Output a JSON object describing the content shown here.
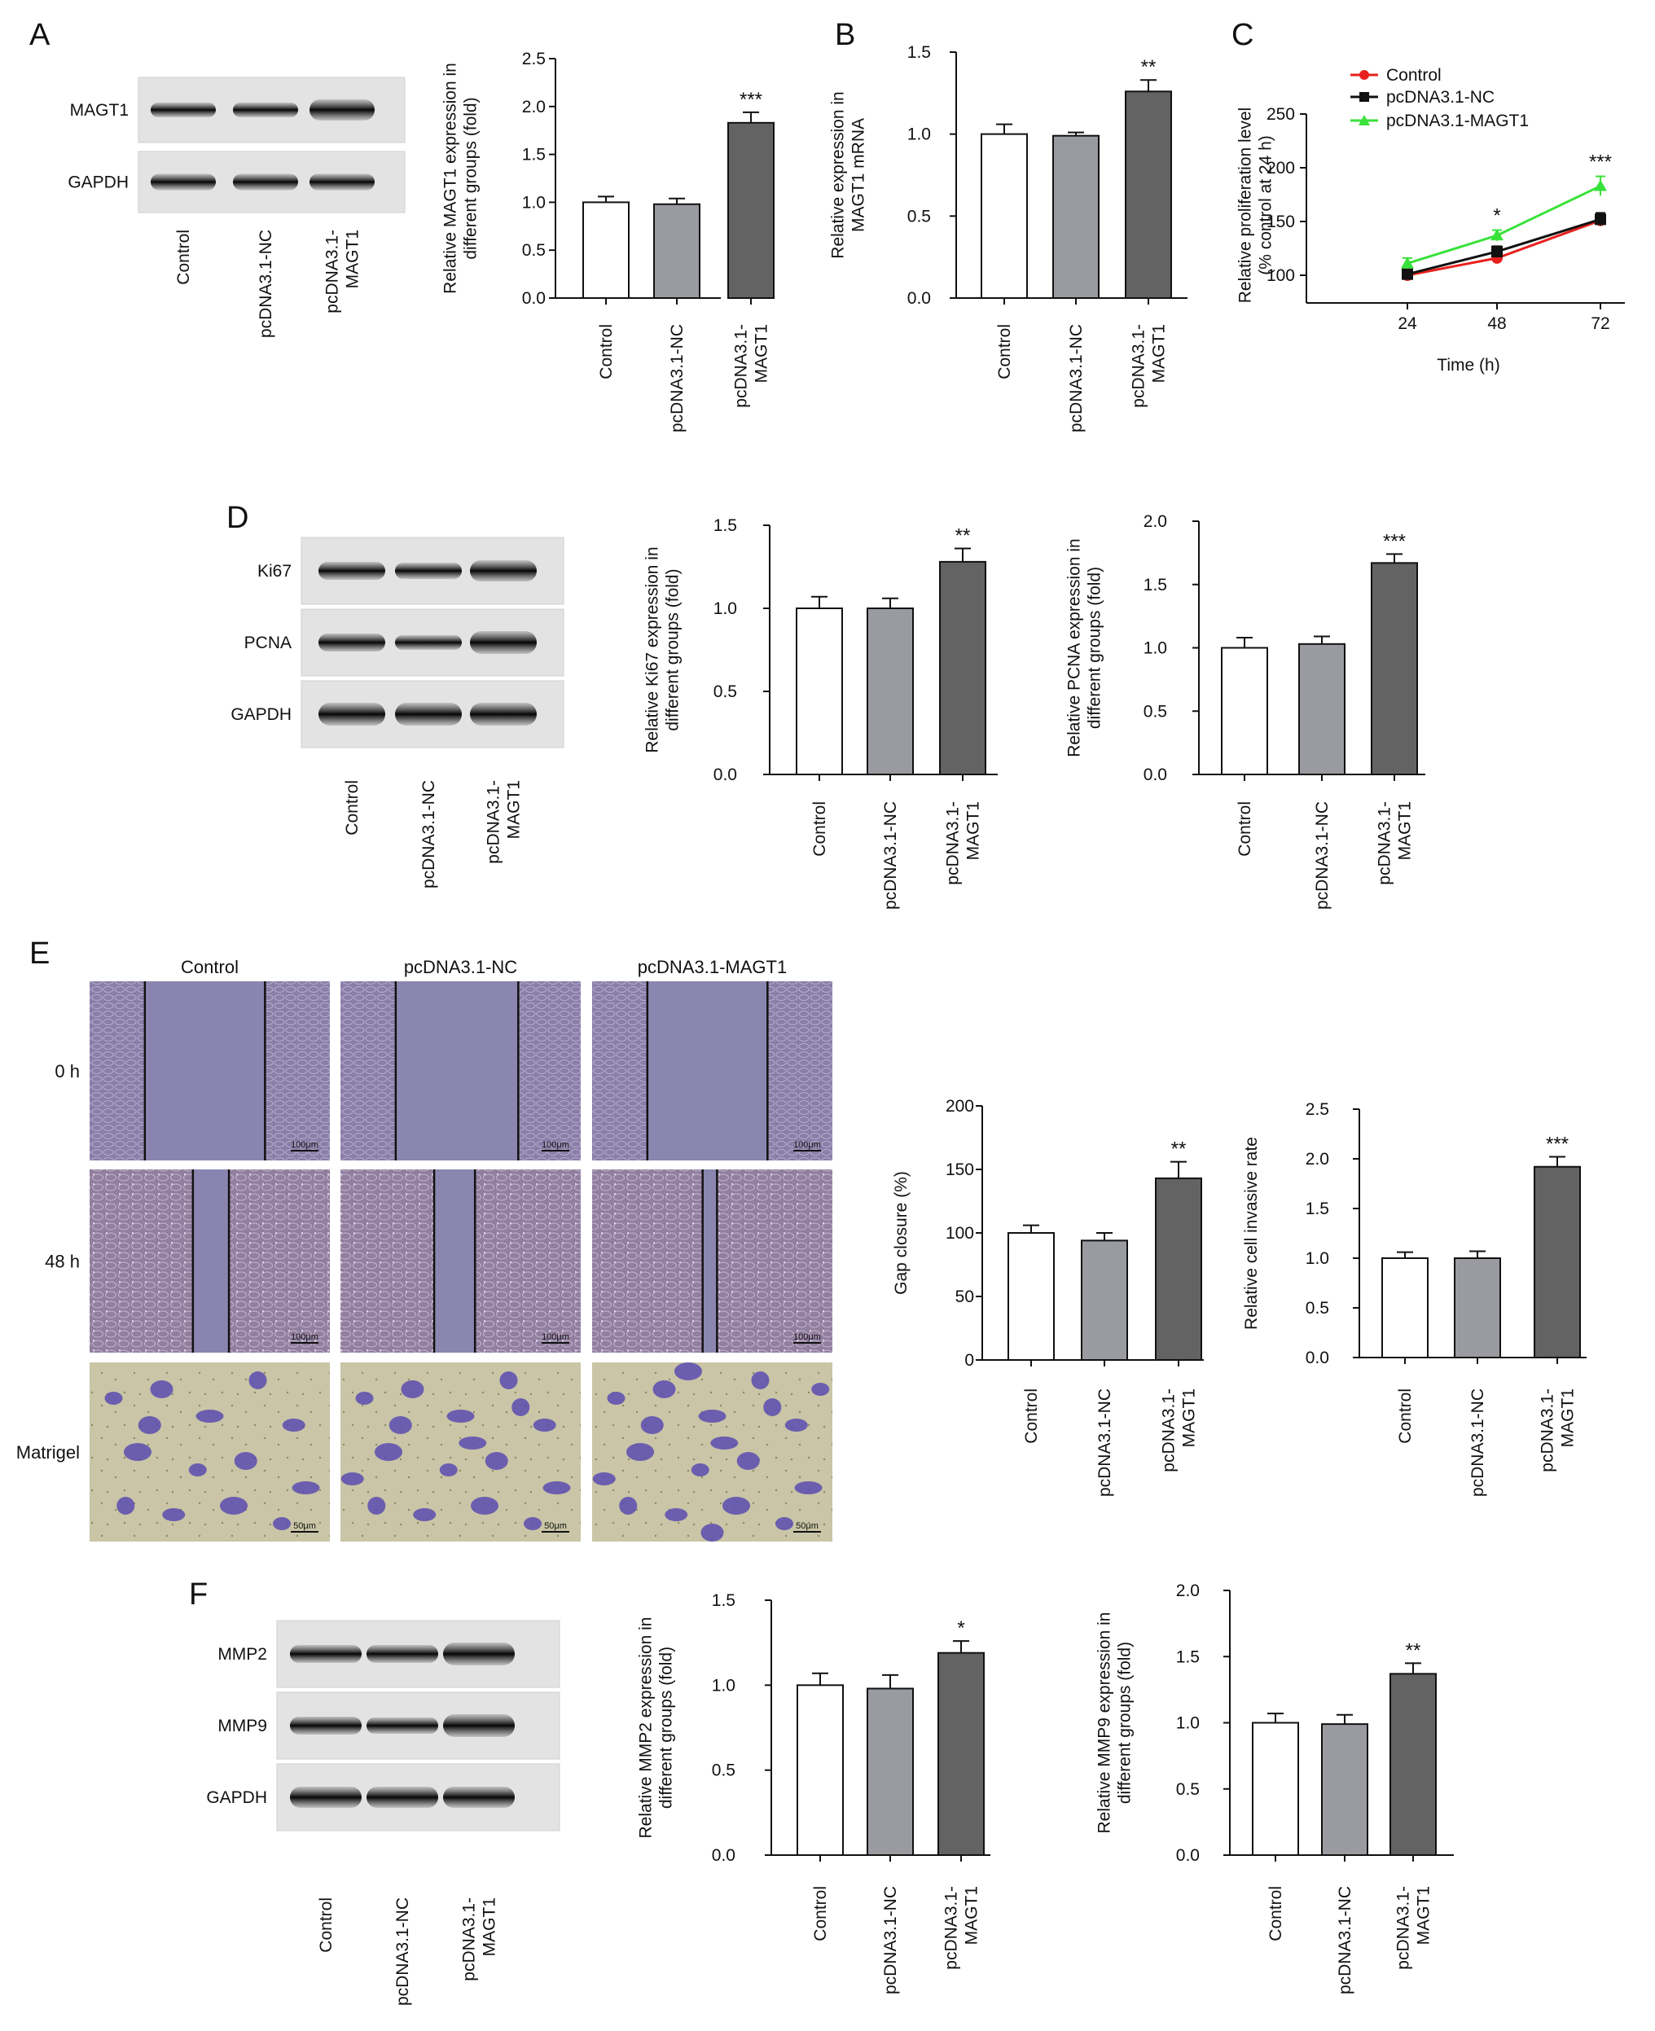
{
  "panels": [
    "A",
    "B",
    "C",
    "D",
    "E",
    "F"
  ],
  "colors": {
    "bar_control": "#ffffff",
    "bar_nc": "#9a9ba1",
    "bar_magt1": "#636363",
    "line_control": "#e8211e",
    "line_nc": "#111111",
    "line_magt1": "#39e23a"
  },
  "blots": {
    "A": {
      "labels": [
        "MAGT1",
        "GAPDH"
      ],
      "lanes": [
        "Control",
        "pcDNA3.1-NC",
        "pcDNA3.1-\nMAGT1"
      ]
    },
    "D": {
      "labels": [
        "Ki67",
        "PCNA",
        "GAPDH"
      ],
      "lanes": [
        "Control",
        "pcDNA3.1-NC",
        "pcDNA3.1-\nMAGT1"
      ]
    },
    "F": {
      "labels": [
        "MMP2",
        "MMP9",
        "GAPDH"
      ],
      "lanes": [
        "Control",
        "pcDNA3.1-NC",
        "pcDNA3.1-\nMAGT1"
      ]
    }
  },
  "micrographs": {
    "columns": [
      "Control",
      "pcDNA3.1-NC",
      "pcDNA3.1-MAGT1"
    ],
    "rows": [
      "0 h",
      "48 h",
      "Matrigel"
    ],
    "scale_bars": [
      "100μm",
      "100μm",
      "50μm"
    ]
  },
  "chart_data": [
    {
      "id": "A",
      "type": "bar",
      "categories": [
        "Control",
        "pcDNA3.1-NC",
        "pcDNA3.1-\nMAGT1"
      ],
      "values": [
        1.0,
        0.98,
        1.83
      ],
      "errors": [
        0.06,
        0.06,
        0.11
      ],
      "sig": [
        "",
        "",
        "***"
      ],
      "ylabel": "Relative MAGT1 expression in\ndifferent groups (fold)",
      "ylim": [
        0,
        2.5
      ],
      "ticks": [
        "0.0",
        "0.5",
        "1.0",
        "1.5",
        "2.0",
        "2.5"
      ]
    },
    {
      "id": "B",
      "type": "bar",
      "categories": [
        "Control",
        "pcDNA3.1-NC",
        "pcDNA3.1-\nMAGT1"
      ],
      "values": [
        1.0,
        0.99,
        1.26
      ],
      "errors": [
        0.06,
        0.02,
        0.07
      ],
      "sig": [
        "",
        "",
        "**"
      ],
      "ylabel": "Relative expression in\nMAGT1 mRNA",
      "ylim": [
        0,
        1.5
      ],
      "ticks": [
        "0.0",
        "0.5",
        "1.0",
        "1.5"
      ]
    },
    {
      "id": "C",
      "type": "line",
      "x": [
        24,
        48,
        72
      ],
      "xticks": [
        "24",
        "48",
        "72"
      ],
      "xlabel": "Time (h)",
      "ylabel": "Relative proliferation level\n(% control at 24 h)",
      "ylim": [
        100,
        250
      ],
      "ticks": [
        "100",
        "150",
        "200",
        "250"
      ],
      "legend": "top-left",
      "series": [
        {
          "name": "Control",
          "values": [
            100,
            116,
            151
          ],
          "errors": [
            4,
            4,
            5
          ]
        },
        {
          "name": "pcDNA3.1-NC",
          "values": [
            101,
            122,
            152
          ],
          "errors": [
            4,
            5,
            6
          ]
        },
        {
          "name": "pcDNA3.1-MAGT1",
          "values": [
            111,
            137,
            183
          ],
          "errors": [
            5,
            5,
            9
          ]
        }
      ],
      "sig": [
        "",
        "*",
        "***"
      ]
    },
    {
      "id": "D1",
      "type": "bar",
      "categories": [
        "Control",
        "pcDNA3.1-NC",
        "pcDNA3.1-\nMAGT1"
      ],
      "values": [
        1.0,
        1.0,
        1.28
      ],
      "errors": [
        0.07,
        0.06,
        0.08
      ],
      "sig": [
        "",
        "",
        "**"
      ],
      "ylabel": "Relative Ki67 expression in\ndifferent groups (fold)",
      "ylim": [
        0,
        1.5
      ],
      "ticks": [
        "0.0",
        "0.5",
        "1.0",
        "1.5"
      ]
    },
    {
      "id": "D2",
      "type": "bar",
      "categories": [
        "Control",
        "pcDNA3.1-NC",
        "pcDNA3.1-\nMAGT1"
      ],
      "values": [
        1.0,
        1.03,
        1.67
      ],
      "errors": [
        0.08,
        0.06,
        0.07
      ],
      "sig": [
        "",
        "",
        "***"
      ],
      "ylabel": "Relative PCNA expression in\ndifferent groups (fold)",
      "ylim": [
        0,
        2.0
      ],
      "ticks": [
        "0.0",
        "0.5",
        "1.0",
        "1.5",
        "2.0"
      ]
    },
    {
      "id": "E1",
      "type": "bar",
      "categories": [
        "Control",
        "pcDNA3.1-NC",
        "pcDNA3.1-\nMAGT1"
      ],
      "values": [
        100,
        94,
        143
      ],
      "errors": [
        6,
        6,
        13
      ],
      "sig": [
        "",
        "",
        "**"
      ],
      "ylabel": "Gap closure (%)",
      "ylim": [
        0,
        200
      ],
      "ticks": [
        "0",
        "50",
        "100",
        "150",
        "200"
      ]
    },
    {
      "id": "E2",
      "type": "bar",
      "categories": [
        "Control",
        "pcDNA3.1-NC",
        "pcDNA3.1-\nMAGT1"
      ],
      "values": [
        1.0,
        1.0,
        1.92
      ],
      "errors": [
        0.06,
        0.07,
        0.1
      ],
      "sig": [
        "",
        "",
        "***"
      ],
      "ylabel": "Relative cell invasive rate",
      "ylim": [
        0,
        2.5
      ],
      "ticks": [
        "0.0",
        "0.5",
        "1.0",
        "1.5",
        "2.0",
        "2.5"
      ]
    },
    {
      "id": "F1",
      "type": "bar",
      "categories": [
        "Control",
        "pcDNA3.1-NC",
        "pcDNA3.1-\nMAGT1"
      ],
      "values": [
        1.0,
        0.98,
        1.19
      ],
      "errors": [
        0.07,
        0.08,
        0.07
      ],
      "sig": [
        "",
        "",
        "*"
      ],
      "ylabel": "Relative MMP2 expression in\ndifferent groups (fold)",
      "ylim": [
        0,
        1.5
      ],
      "ticks": [
        "0.0",
        "0.5",
        "1.0",
        "1.5"
      ]
    },
    {
      "id": "F2",
      "type": "bar",
      "categories": [
        "Control",
        "pcDNA3.1-NC",
        "pcDNA3.1-\nMAGT1"
      ],
      "values": [
        1.0,
        0.99,
        1.37
      ],
      "errors": [
        0.07,
        0.07,
        0.08
      ],
      "sig": [
        "",
        "",
        "**"
      ],
      "ylabel": "Relative MMP9 expression in\ndifferent groups (fold)",
      "ylim": [
        0,
        2.0
      ],
      "ticks": [
        "0.0",
        "0.5",
        "1.0",
        "1.5",
        "2.0"
      ]
    }
  ]
}
